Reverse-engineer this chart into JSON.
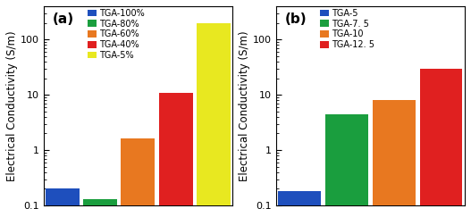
{
  "panel_a": {
    "label": "(a)",
    "categories": [
      "TGA-100%",
      "TGA-80%",
      "TGA-60%",
      "TGA-40%",
      "TGA-5%"
    ],
    "values": [
      0.2,
      0.13,
      1.6,
      11.0,
      200.0
    ],
    "colors": [
      "#1E4FBD",
      "#1A9E3E",
      "#E87820",
      "#E02020",
      "#E8E820"
    ],
    "legend_labels": [
      "TGA-100%",
      "TGA-80%",
      "TGA-60%",
      "TGA-40%",
      "TGA-5%"
    ],
    "ylabel": "Electrical Conductivity (S/m)",
    "ylim": [
      0.1,
      400
    ],
    "yticks": [
      0.1,
      1,
      10,
      100
    ]
  },
  "panel_b": {
    "label": "(b)",
    "categories": [
      "TGA-5",
      "TGA-7.5",
      "TGA-10",
      "TGA-12.5"
    ],
    "values": [
      0.18,
      4.5,
      8.0,
      30.0
    ],
    "colors": [
      "#1E4FBD",
      "#1A9E3E",
      "#E87820",
      "#E02020"
    ],
    "legend_labels": [
      "TGA-5",
      "TGA-7. 5",
      "TGA-10",
      "TGA-12. 5"
    ],
    "ylabel": "Electrical Conductivity (S/m)",
    "ylim": [
      0.1,
      400
    ],
    "yticks": [
      0.1,
      1,
      10,
      100
    ]
  },
  "background_color": "#FFFFFF",
  "bar_width": 0.9,
  "legend_fontsize": 7.0,
  "label_fontsize": 8.5,
  "tick_fontsize": 8.0,
  "panel_label_fontsize": 11
}
